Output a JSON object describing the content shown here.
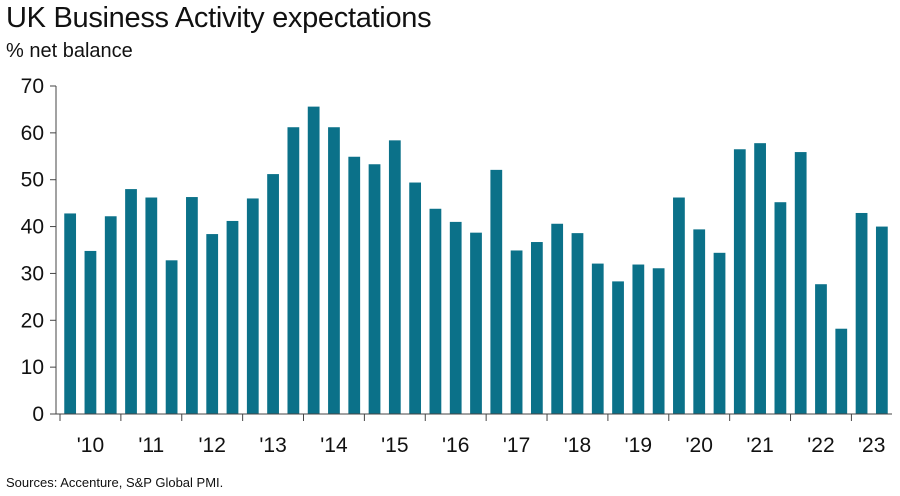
{
  "title": "UK Business Activity expectations",
  "subtitle": "% net balance",
  "source": "Sources: Accenture, S&P Global PMI.",
  "colors": {
    "bar": "#0b7189",
    "axis": "#444444",
    "text": "#111111"
  },
  "chart_data": {
    "type": "bar",
    "title": "UK Business Activity expectations",
    "ylabel": "% net balance",
    "xlabel": "",
    "ylim": [
      0,
      70
    ],
    "yticks": [
      0,
      10,
      20,
      30,
      40,
      50,
      60,
      70
    ],
    "grid": false,
    "legend": "none",
    "year_labels": [
      "'10",
      "'11",
      "'12",
      "'13",
      "'14",
      "'15",
      "'16",
      "'17",
      "'18",
      "'19",
      "'20",
      "'21",
      "'22",
      "'23"
    ],
    "year_starts": [
      0,
      3,
      6,
      9,
      12,
      15,
      18,
      21,
      24,
      27,
      30,
      33,
      36,
      39
    ],
    "values": [
      42.8,
      34.8,
      42.2,
      48.0,
      46.2,
      32.8,
      46.3,
      38.4,
      41.2,
      46.0,
      51.2,
      61.2,
      65.6,
      61.2,
      54.9,
      53.3,
      58.4,
      49.4,
      43.8,
      41.0,
      38.7,
      52.1,
      34.9,
      36.7,
      40.6,
      38.6,
      32.1,
      28.3,
      31.9,
      31.1,
      46.2,
      39.4,
      34.4,
      56.5,
      57.8,
      45.2,
      55.9,
      27.7,
      18.2,
      42.9,
      40.0
    ]
  }
}
